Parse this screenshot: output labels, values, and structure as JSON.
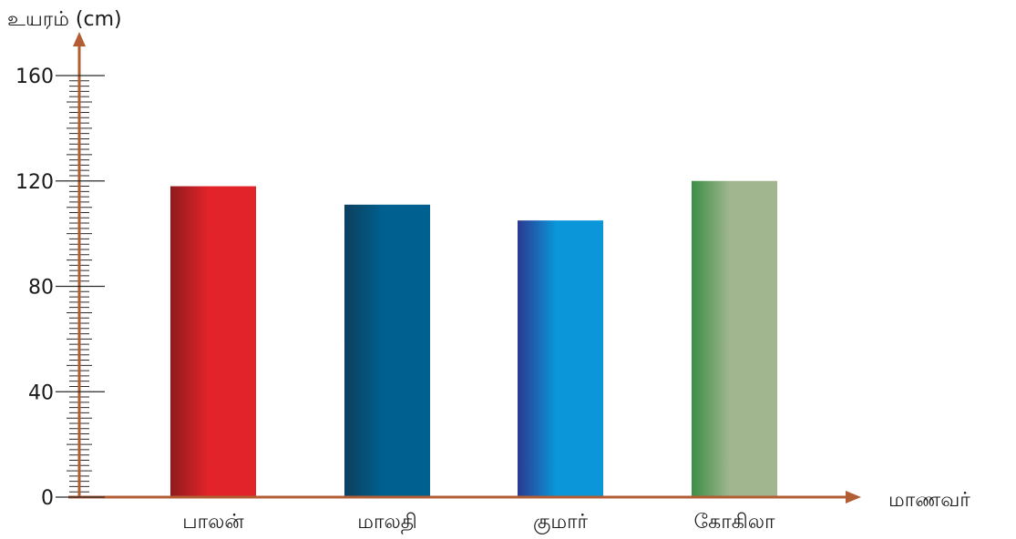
{
  "chart_data": {
    "type": "bar",
    "ylabel": "உயரம் (cm)",
    "xlabel": "மாணவர்",
    "ylim": [
      0,
      160
    ],
    "y_ticks": [
      "0",
      "40",
      "80",
      "120",
      "160"
    ],
    "minor_tick_step": 2,
    "categories": [
      "பாலன்",
      "மாலதி",
      "குமார்",
      "கோகிலா"
    ],
    "values": [
      118,
      111,
      105,
      120
    ],
    "bar_colors": [
      [
        "#8e1c1e",
        "#e3232a"
      ],
      [
        "#0c3f5e",
        "#00608f"
      ],
      [
        "#2b3990",
        "#0a96d9"
      ],
      [
        "#3b8e46",
        "#a1b68f"
      ]
    ],
    "axis_color": "#b25d34"
  }
}
